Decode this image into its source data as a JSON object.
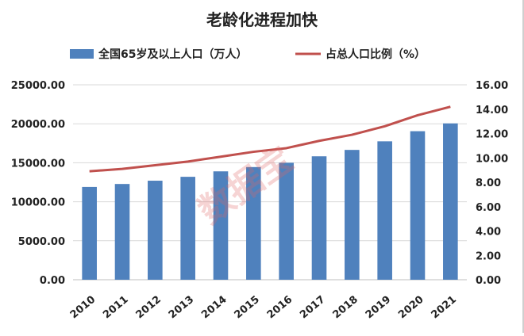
{
  "chart_data": {
    "type": "bar",
    "title": "老龄化进程加快",
    "categories": [
      "2010",
      "2011",
      "2012",
      "2013",
      "2014",
      "2015",
      "2016",
      "2017",
      "2018",
      "2019",
      "2020",
      "2021"
    ],
    "series": [
      {
        "name": "全国65岁及以上人口（万人）",
        "kind": "bar",
        "axis": "left",
        "color": "#4f81bd",
        "values": [
          11900,
          12280,
          12700,
          13200,
          13900,
          14450,
          15000,
          15830,
          16650,
          17750,
          19050,
          20050
        ]
      },
      {
        "name": "占总人口比例（%）",
        "kind": "line",
        "axis": "right",
        "color": "#c0504d",
        "values": [
          8.9,
          9.1,
          9.4,
          9.7,
          10.1,
          10.5,
          10.8,
          11.4,
          11.9,
          12.6,
          13.5,
          14.2
        ]
      }
    ],
    "y_left": {
      "min": 0,
      "max": 25000,
      "ticks": [
        "0.00",
        "5000.00",
        "10000.00",
        "15000.00",
        "20000.00",
        "25000.00"
      ]
    },
    "y_right": {
      "min": 0,
      "max": 16,
      "ticks": [
        "0.00",
        "2.00",
        "4.00",
        "6.00",
        "8.00",
        "10.00",
        "12.00",
        "14.00",
        "16.00"
      ]
    },
    "grid": true,
    "legend_position": "top",
    "watermark": "数据宝"
  }
}
